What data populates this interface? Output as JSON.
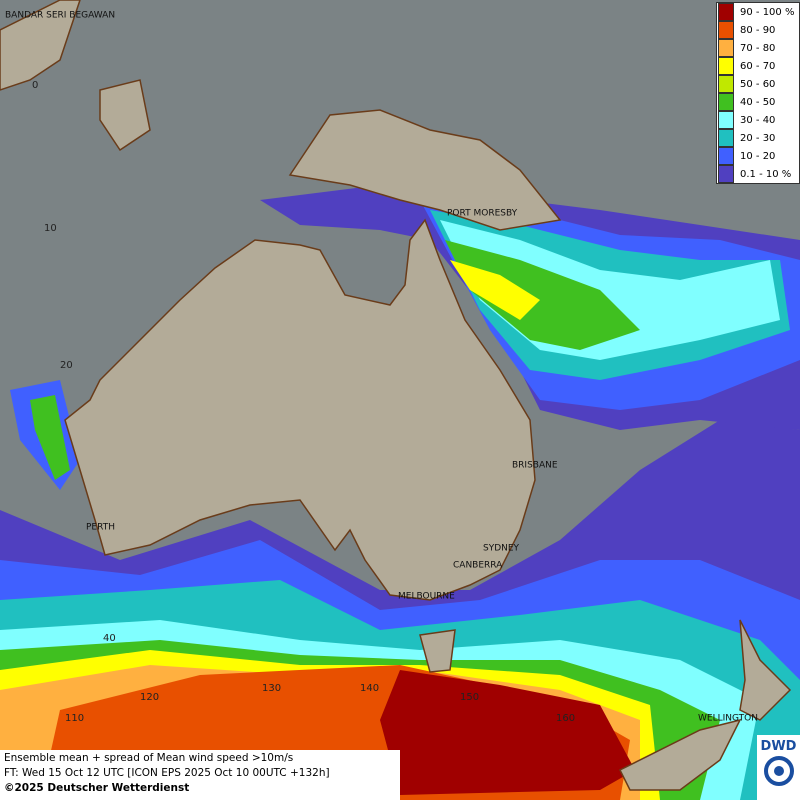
{
  "map": {
    "cities": [
      "BANDAR SERI BEGAWAN",
      "PORT MORESBY",
      "BRISBANE",
      "PERTH",
      "SYDNEY",
      "CANBERRA",
      "MELBOURNE",
      "WELLINGTON"
    ],
    "grid_labels": [
      "0",
      "10",
      "20",
      "40",
      "110",
      "120",
      "130",
      "140",
      "150",
      "160"
    ]
  },
  "legend": {
    "items": [
      {
        "label": "90 - 100 %",
        "color": "#a00000"
      },
      {
        "label": "80 - 90",
        "color": "#e85000"
      },
      {
        "label": "70 - 80",
        "color": "#ffb040"
      },
      {
        "label": "60 - 70",
        "color": "#ffff00"
      },
      {
        "label": "50 - 60",
        "color": "#c0e800"
      },
      {
        "label": "40 - 50",
        "color": "#40c020"
      },
      {
        "label": "30 - 40",
        "color": "#80ffff"
      },
      {
        "label": "20 - 30",
        "color": "#20c0c0"
      },
      {
        "label": "10 - 20",
        "color": "#4060ff"
      },
      {
        "label": "0.1 - 10 %",
        "color": "#5040c0"
      }
    ]
  },
  "caption": {
    "lines": [
      "Ensemble mean + spread of Mean wind speed >10m/s",
      "FT: Wed 15 Oct 12 UTC [ICON EPS 2025 Oct 10 00UTC +132h]",
      "©2025 Deutscher Wetterdienst"
    ]
  },
  "logo": {
    "text": "DWD"
  }
}
